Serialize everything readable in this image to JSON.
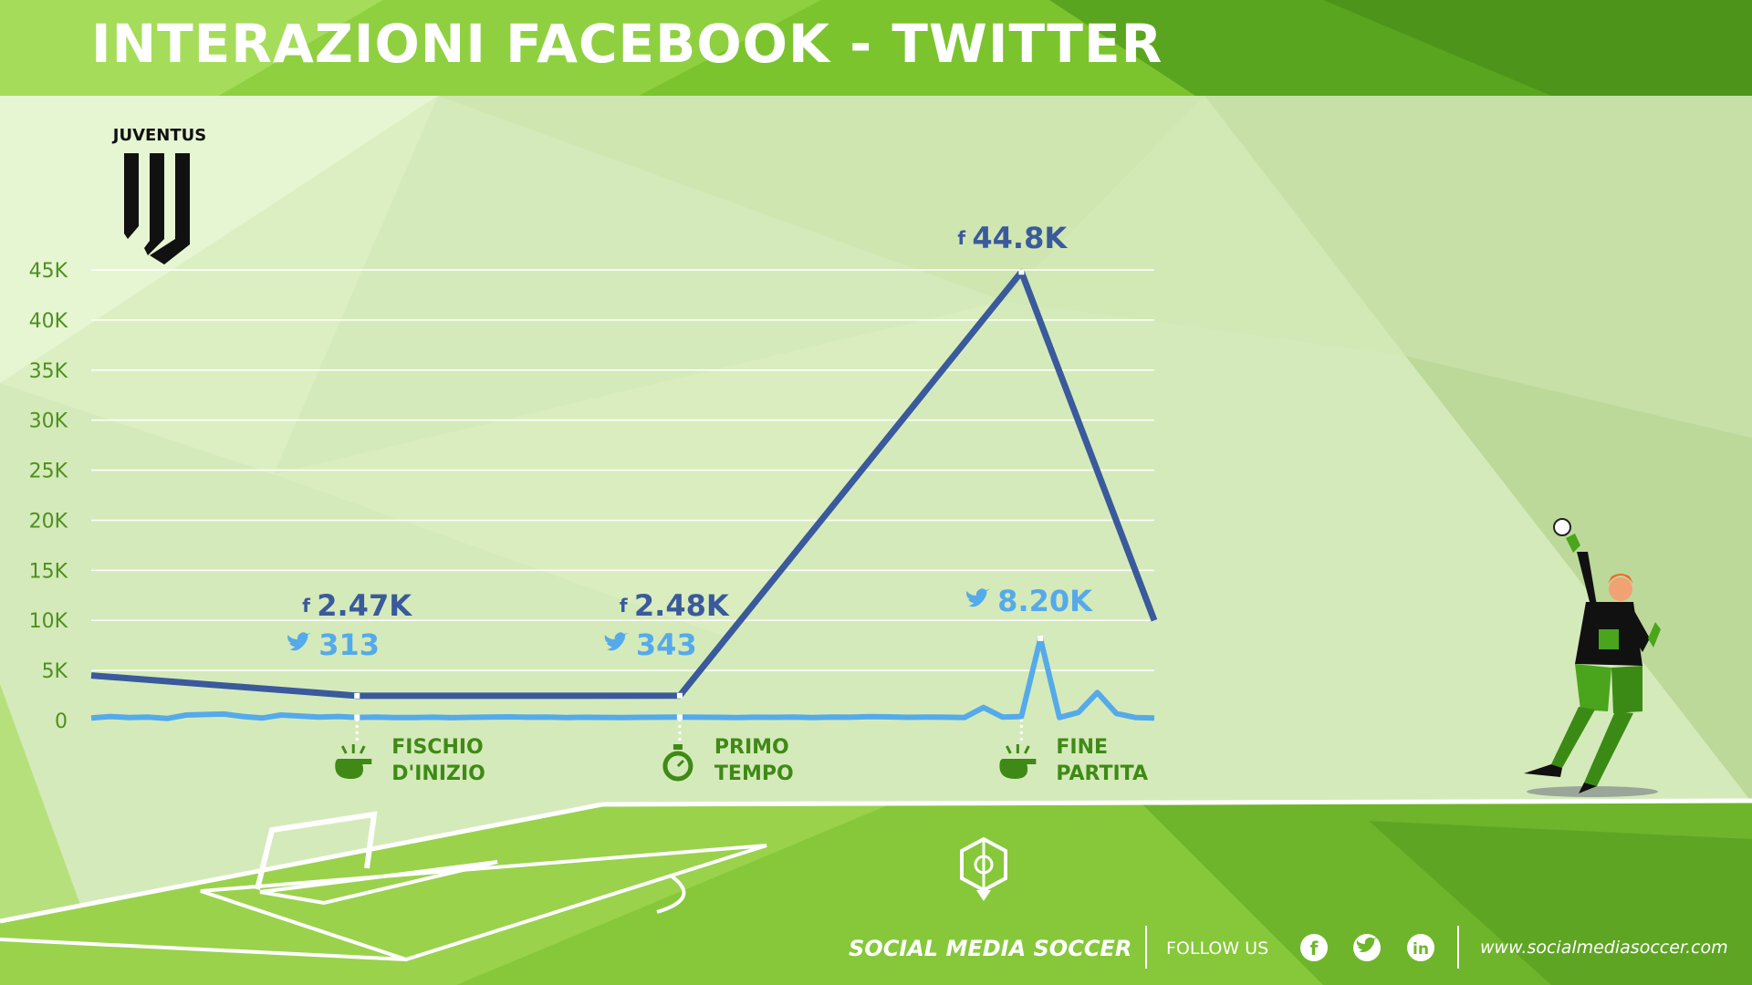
{
  "header": {
    "title": "INTERAZIONI FACEBOOK - TWITTER"
  },
  "club": {
    "name": "JUVENTUS"
  },
  "colors": {
    "facebook": "#3a5a9c",
    "twitter": "#55aaea",
    "axis_text": "#4f8f1f",
    "event_text": "#3f8a16",
    "header_green": "#7cc42e",
    "pitch_green": "#86c83a"
  },
  "chart_data": {
    "type": "line",
    "title": "INTERAZIONI FACEBOOK - TWITTER",
    "xlabel": "",
    "ylabel": "",
    "ylim": [
      0,
      45000
    ],
    "yticks": [
      0,
      5000,
      10000,
      15000,
      20000,
      25000,
      30000,
      35000,
      40000,
      45000
    ],
    "ytick_labels": [
      "0",
      "5K",
      "10K",
      "15K",
      "20K",
      "25K",
      "30K",
      "35K",
      "40K",
      "45K"
    ],
    "grid": true,
    "x_range": [
      0,
      56
    ],
    "series": [
      {
        "icon": "facebook-icon",
        "color": "#3a5a9c",
        "x": [
          0,
          14,
          31,
          49,
          56
        ],
        "y": [
          4500,
          2470,
          2480,
          44800,
          10000
        ]
      },
      {
        "icon": "twitter-icon",
        "color": "#55aaea",
        "x": [
          0,
          1,
          2,
          3,
          4,
          5,
          6,
          7,
          8,
          9,
          10,
          11,
          12,
          13,
          14,
          15,
          16,
          17,
          18,
          19,
          20,
          21,
          22,
          23,
          24,
          25,
          26,
          27,
          28,
          29,
          30,
          31,
          32,
          33,
          34,
          35,
          36,
          37,
          38,
          39,
          40,
          41,
          42,
          43,
          44,
          45,
          46,
          47,
          48,
          49,
          50,
          51,
          52,
          53,
          54,
          55,
          56
        ],
        "y": [
          250,
          400,
          300,
          350,
          200,
          550,
          600,
          650,
          400,
          250,
          550,
          450,
          350,
          400,
          313,
          350,
          300,
          300,
          330,
          280,
          320,
          350,
          360,
          330,
          340,
          300,
          320,
          310,
          300,
          320,
          330,
          343,
          330,
          320,
          300,
          330,
          320,
          340,
          300,
          350,
          330,
          380,
          360,
          320,
          350,
          330,
          300,
          1300,
          350,
          400,
          8200,
          300,
          800,
          2800,
          700,
          300,
          250
        ]
      }
    ],
    "annotations": [
      {
        "label": "2.47K",
        "series_icon": "facebook-icon"
      },
      {
        "label": "313",
        "series_icon": "twitter-icon"
      },
      {
        "label": "2.48K",
        "series_icon": "facebook-icon"
      },
      {
        "label": "343",
        "series_icon": "twitter-icon"
      },
      {
        "label": "44.8K",
        "series_icon": "facebook-icon"
      },
      {
        "label": "8.20K",
        "series_icon": "twitter-icon"
      }
    ],
    "events": [
      {
        "line1": "FISCHIO",
        "line2": "D'INIZIO",
        "icon": "whistle-icon"
      },
      {
        "line1": "PRIMO",
        "line2": "TEMPO",
        "icon": "stopwatch-icon"
      },
      {
        "line1": "FINE",
        "line2": "PARTITA",
        "icon": "whistle-icon"
      }
    ]
  },
  "footer": {
    "brand": "SOCIAL MEDIA SOCCER",
    "follow": "FOLLOW US",
    "social_icons": [
      "facebook-icon",
      "twitter-icon",
      "linkedin-icon"
    ],
    "website": "www.socialmediasoccer.com"
  }
}
